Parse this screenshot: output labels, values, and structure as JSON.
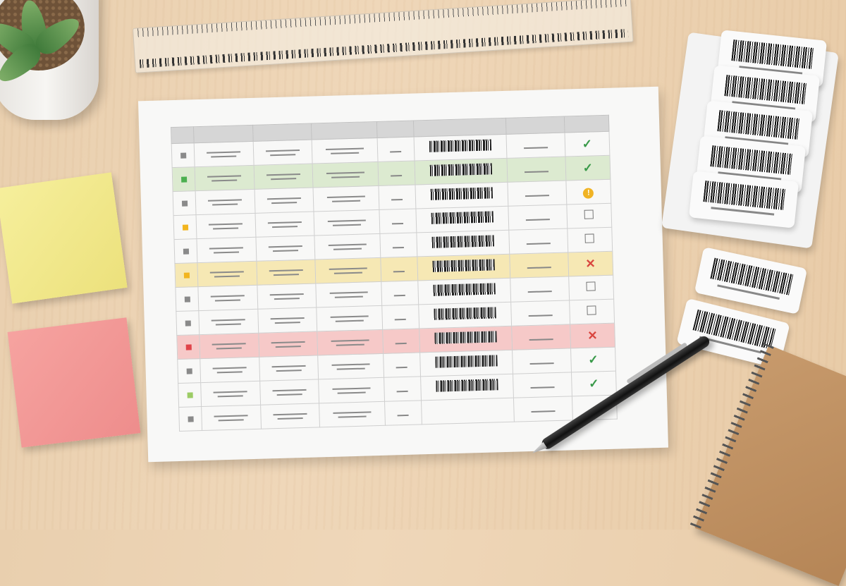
{
  "scene": {
    "objects": [
      "succulent-plant",
      "ruler",
      "yellow-sticky-note",
      "pink-sticky-note",
      "spreadsheet-printout",
      "barcode-labels",
      "pen",
      "spiral-notebook"
    ]
  },
  "colors": {
    "green": "#4caf50",
    "yellow": "#f2b51f",
    "red": "#e0444a",
    "gray": "#8a8a8a",
    "light_green": "#9ccc65",
    "check": "#3a9a4a",
    "x": "#d9453e",
    "warning": "#f0b324"
  },
  "sheet": {
    "rows": [
      {
        "marker": "gray",
        "highlight": "none",
        "status": "check",
        "barcode": true
      },
      {
        "marker": "green",
        "highlight": "green",
        "status": "check",
        "barcode": true
      },
      {
        "marker": "gray",
        "highlight": "none",
        "status": "warning",
        "barcode": true
      },
      {
        "marker": "yellow",
        "highlight": "none",
        "status": "box",
        "barcode": true
      },
      {
        "marker": "gray",
        "highlight": "none",
        "status": "box",
        "barcode": true
      },
      {
        "marker": "yellow",
        "highlight": "yellow",
        "status": "x",
        "barcode": true
      },
      {
        "marker": "gray",
        "highlight": "none",
        "status": "box",
        "barcode": true
      },
      {
        "marker": "gray",
        "highlight": "none",
        "status": "box",
        "barcode": true
      },
      {
        "marker": "red",
        "highlight": "red",
        "status": "x",
        "barcode": true
      },
      {
        "marker": "gray",
        "highlight": "none",
        "status": "check",
        "barcode": true
      },
      {
        "marker": "light_green",
        "highlight": "none",
        "status": "check",
        "barcode": true
      },
      {
        "marker": "gray",
        "highlight": "none",
        "status": "none",
        "barcode": false
      }
    ]
  },
  "status_glyphs": {
    "check": "✓",
    "x": "✕",
    "warning": "!"
  }
}
